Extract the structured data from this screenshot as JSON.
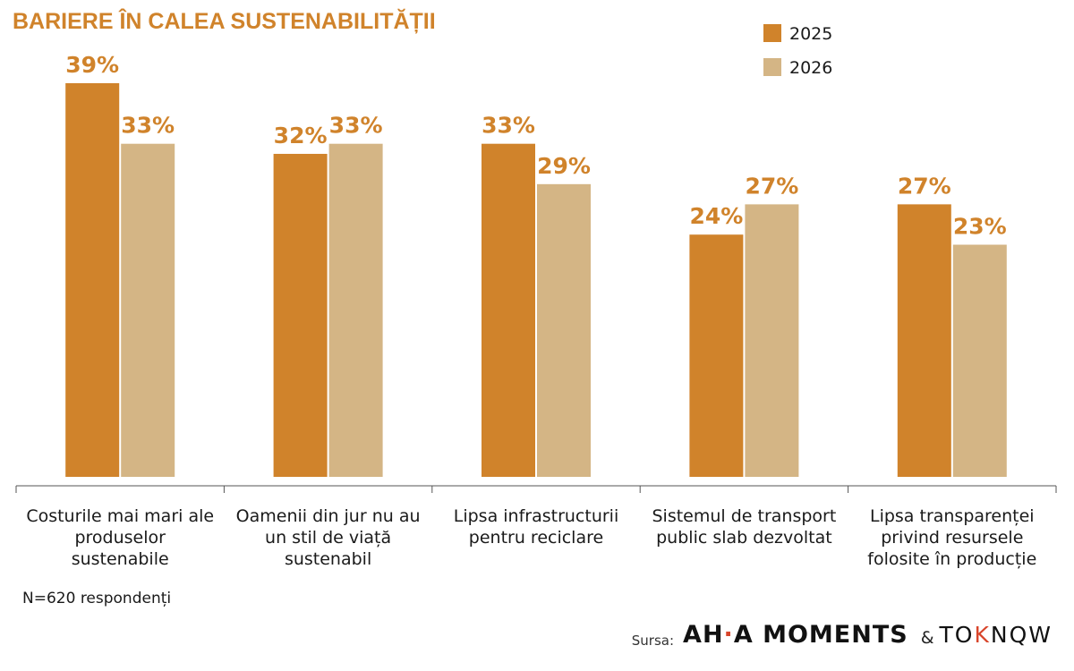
{
  "chart_data": {
    "type": "bar",
    "title": "BARIERE ÎN CALEA SUSTENABILITĂȚII",
    "categories": [
      [
        "Costurile mai mari ale",
        "produselor",
        "sustenabile"
      ],
      [
        "Oamenii din jur nu au",
        "un stil de viață",
        "sustenabil"
      ],
      [
        "Lipsa infrastructurii",
        "pentru reciclare"
      ],
      [
        "Sistemul de transport",
        "public slab dezvoltat"
      ],
      [
        "Lipsa transparenței",
        "privind resursele",
        "folosite în producție"
      ]
    ],
    "series": [
      {
        "name": "2025",
        "color": "#d0832b",
        "values": [
          39,
          32,
          33,
          24,
          27
        ]
      },
      {
        "name": "2026",
        "color": "#d4b585",
        "values": [
          33,
          33,
          29,
          27,
          23
        ]
      }
    ],
    "value_suffix": "%",
    "ylim": [
      0,
      40
    ],
    "grid": false,
    "legend_position": "top-right",
    "label_color": "#d0832b",
    "title_color": "#d0832b"
  },
  "footer": {
    "note": "N=620 respondenți",
    "source_label": "Sursa:",
    "brand_main_left": "AH",
    "brand_main_dot": "·",
    "brand_main_right": "A MOMENTS",
    "brand_amp": "&",
    "brand_second_left": "TO",
    "brand_second_accent": "K",
    "brand_second_right": "NQW"
  }
}
